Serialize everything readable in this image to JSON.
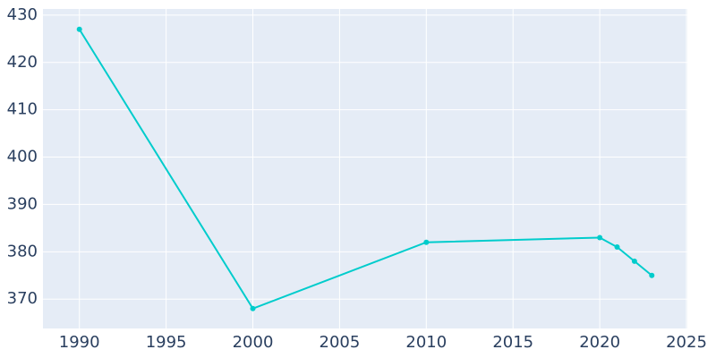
{
  "chart_data": {
    "type": "line",
    "x": [
      1990,
      2000,
      2010,
      2020,
      2021,
      2022,
      2023
    ],
    "series": [
      {
        "color": "#00cccc",
        "values": [
          427,
          368,
          382,
          383,
          381,
          378,
          375
        ]
      }
    ],
    "xlim": [
      1987.9,
      2025.05
    ],
    "xticks": [
      1990,
      1995,
      2000,
      2005,
      2010,
      2015,
      2020,
      2025
    ],
    "ylim": [
      363.8,
      431.3
    ],
    "yticks": [
      370,
      380,
      390,
      400,
      410,
      420,
      430
    ],
    "grid": true
  }
}
